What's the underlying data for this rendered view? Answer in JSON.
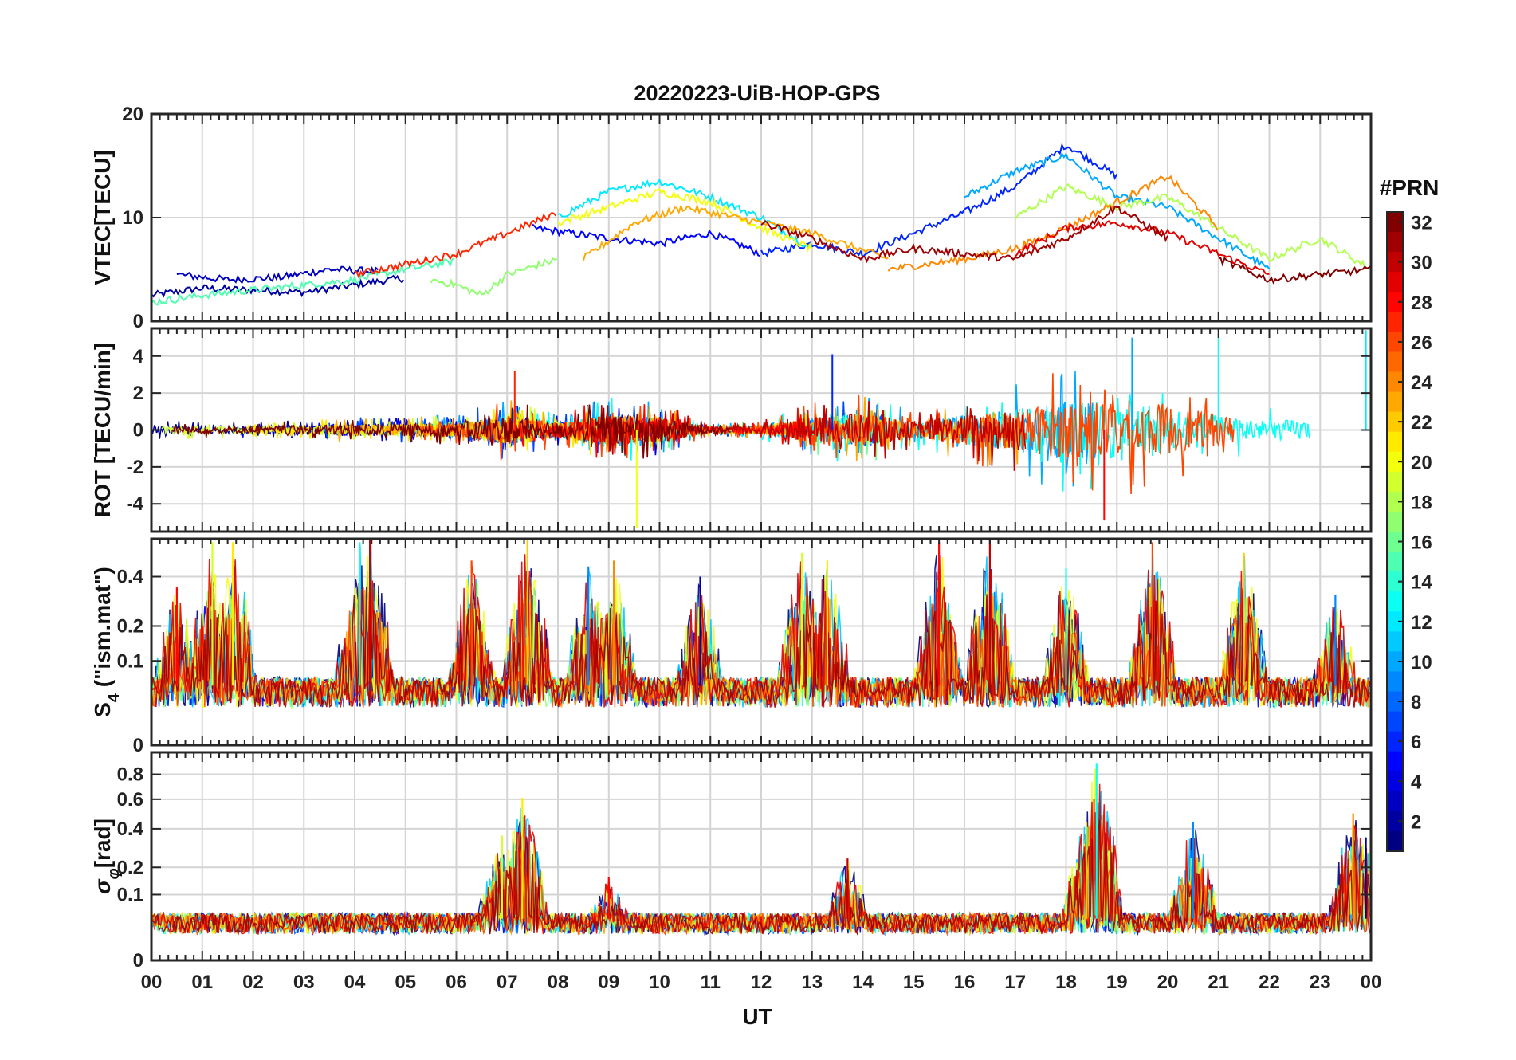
{
  "title": "20220223-UiB-HOP-GPS",
  "xlabel": "UT",
  "x_tick_labels": [
    "00",
    "01",
    "02",
    "03",
    "04",
    "05",
    "06",
    "07",
    "08",
    "09",
    "10",
    "11",
    "12",
    "13",
    "14",
    "15",
    "16",
    "17",
    "18",
    "19",
    "20",
    "21",
    "22",
    "23",
    "00"
  ],
  "colorbar": {
    "label": "#PRN",
    "tick_labels": [
      "2",
      "4",
      "6",
      "8",
      "10",
      "12",
      "14",
      "16",
      "18",
      "20",
      "22",
      "24",
      "26",
      "28",
      "30",
      "32"
    ],
    "range": [
      1,
      32
    ],
    "colormap": "jet"
  },
  "panels": [
    {
      "id": "vtec",
      "ylabel": "VTEC[TECU]",
      "ylim": [
        0,
        20
      ],
      "ytick_values": [
        0,
        10,
        20
      ],
      "ytick_labels": [
        "0",
        "10",
        "20"
      ]
    },
    {
      "id": "rot",
      "ylabel": "ROT [TECU/min]",
      "ylim": [
        -5.5,
        5.5
      ],
      "ytick_values": [
        -4,
        -2,
        0,
        2,
        4
      ],
      "ytick_labels": [
        "-4",
        "-2",
        "0",
        "2",
        "4"
      ]
    },
    {
      "id": "s4",
      "ylabel": "S",
      "ylabel_sub": "4",
      "ylabel_suffix": " (\"ism.mat\")",
      "ylim": [
        0,
        0.6
      ],
      "scale": "sqrt",
      "ytick_values": [
        0,
        0.1,
        0.2,
        0.4
      ],
      "ytick_labels": [
        "0",
        "0.1",
        "0.2",
        "0.4"
      ]
    },
    {
      "id": "sigma",
      "ylabel": "σ",
      "ylabel_sub": "φ",
      "ylabel_suffix": "[rad]",
      "ylim": [
        0,
        1
      ],
      "scale": "sqrt",
      "ytick_values": [
        0,
        0.1,
        0.2,
        0.4,
        0.6,
        0.8
      ],
      "ytick_labels": [
        "0",
        "0.1",
        "0.2",
        "0.4",
        "0.6",
        "0.8"
      ]
    }
  ],
  "chart_data": {
    "type": "line",
    "title": "20220223-UiB-HOP-GPS",
    "xlabel": "UT",
    "x_unit": "hours",
    "xlim": [
      0,
      24
    ],
    "grid": true,
    "color_by": "PRN",
    "prn_range": [
      1,
      32
    ],
    "panels": [
      {
        "id": "vtec",
        "ylabel": "VTEC[TECU]",
        "ylim": [
          0,
          20
        ],
        "series": [
          {
            "prn": 2,
            "x": [
              0.0,
              1.0,
              2.0,
              3.0,
              4.0,
              5.0
            ],
            "y": [
              2.5,
              3.2,
              3.0,
              2.8,
              3.5,
              4.2
            ]
          },
          {
            "prn": 3,
            "x": [
              0.5,
              1.5,
              2.5,
              3.5,
              4.5
            ],
            "y": [
              4.5,
              4.0,
              4.2,
              5.0,
              4.8
            ]
          },
          {
            "prn": 5,
            "x": [
              7.5,
              9.0,
              10.0,
              10.5,
              11.0,
              12.0
            ],
            "y": [
              9.0,
              8.0,
              7.5,
              8.0,
              8.5,
              6.5
            ]
          },
          {
            "prn": 6,
            "x": [
              12.0,
              13.0,
              14.0,
              15.0,
              16.0,
              17.0,
              18.0,
              19.0
            ],
            "y": [
              6.5,
              7.5,
              6.5,
              8.5,
              10.5,
              13.0,
              17.0,
              14.0
            ]
          },
          {
            "prn": 10,
            "x": [
              16.0,
              17.0,
              18.0,
              19.0,
              20.0,
              21.0,
              22.0
            ],
            "y": [
              12.0,
              14.5,
              16.0,
              12.0,
              11.0,
              8.0,
              5.0
            ]
          },
          {
            "prn": 12,
            "x": [
              8.0,
              9.0,
              10.0,
              11.0,
              12.0,
              13.0
            ],
            "y": [
              10.0,
              12.5,
              13.5,
              12.0,
              10.0,
              7.0
            ]
          },
          {
            "prn": 15,
            "x": [
              0.0,
              1.0,
              2.0,
              3.0,
              4.0,
              5.0,
              6.0
            ],
            "y": [
              1.8,
              2.5,
              3.0,
              3.5,
              4.0,
              5.0,
              5.8
            ]
          },
          {
            "prn": 17,
            "x": [
              5.5,
              6.0,
              6.5,
              7.0,
              8.0
            ],
            "y": [
              4.0,
              3.5,
              2.5,
              4.5,
              6.0
            ]
          },
          {
            "prn": 18,
            "x": [
              17.0,
              18.0,
              19.0,
              20.0,
              21.0,
              22.0,
              23.0,
              24.0
            ],
            "y": [
              10.0,
              13.0,
              11.0,
              12.0,
              9.0,
              6.0,
              8.0,
              5.0
            ]
          },
          {
            "prn": 20,
            "x": [
              8.0,
              9.0,
              10.0,
              11.0,
              12.0,
              13.0
            ],
            "y": [
              9.5,
              11.0,
              12.5,
              11.5,
              9.0,
              7.0
            ]
          },
          {
            "prn": 23,
            "x": [
              8.5,
              9.5,
              10.5,
              11.5,
              13.0,
              14.5
            ],
            "y": [
              6.0,
              9.5,
              11.0,
              10.0,
              8.5,
              6.0
            ]
          },
          {
            "prn": 24,
            "x": [
              14.5,
              16.0,
              17.0,
              18.0,
              19.0,
              20.0,
              21.0
            ],
            "y": [
              5.0,
              6.0,
              7.0,
              9.0,
              11.5,
              14.0,
              9.0
            ]
          },
          {
            "prn": 27,
            "x": [
              4.0,
              5.0,
              6.0,
              7.0,
              8.0
            ],
            "y": [
              4.5,
              5.5,
              6.5,
              8.5,
              10.5
            ]
          },
          {
            "prn": 29,
            "x": [
              17.0,
              18.0,
              19.0,
              20.0,
              21.0,
              22.0
            ],
            "y": [
              6.5,
              9.0,
              9.5,
              8.5,
              6.5,
              4.5
            ]
          },
          {
            "prn": 31,
            "x": [
              12.0,
              13.0,
              14.0,
              15.0,
              16.0,
              17.0,
              18.0,
              19.0,
              20.0
            ],
            "y": [
              9.5,
              8.0,
              6.0,
              7.0,
              6.5,
              6.0,
              8.0,
              11.0,
              8.0
            ]
          },
          {
            "prn": 32,
            "x": [
              21.0,
              22.0,
              23.0,
              24.0
            ],
            "y": [
              6.0,
              4.0,
              4.5,
              5.0
            ]
          }
        ]
      },
      {
        "id": "rot",
        "ylabel": "ROT [TECU/min]",
        "ylim": [
          -5.5,
          5.5
        ],
        "envelope": [
          {
            "x": [
              0,
              2,
              4,
              6,
              7,
              8,
              9,
              10,
              11,
              12,
              13,
              14,
              15,
              16,
              17,
              18,
              19,
              20,
              21,
              22,
              23,
              24
            ],
            "amplitude": [
              0.5,
              0.4,
              0.7,
              0.8,
              1.8,
              0.9,
              1.8,
              1.5,
              0.3,
              0.5,
              1.5,
              2.0,
              1.0,
              1.8,
              2.5,
              3.5,
              3.8,
              3.0,
              1.8,
              1.2,
              1.2,
              2.0
            ]
          }
        ],
        "peaks": [
          {
            "x": 9.55,
            "y": -5.3
          },
          {
            "x": 18.75,
            "y": -4.9
          },
          {
            "x": 19.3,
            "y": 5.0
          },
          {
            "x": 13.4,
            "y": 4.1
          },
          {
            "x": 7.15,
            "y": 3.2
          },
          {
            "x": 21.0,
            "y": 5.2
          },
          {
            "x": 23.9,
            "y": 5.4
          }
        ]
      },
      {
        "id": "s4",
        "ylabel": "S4 (\"ism.mat\")",
        "ylim": [
          0,
          0.6
        ],
        "baseline": 0.05,
        "peaks": [
          {
            "x": 1.2,
            "y": 0.58
          },
          {
            "x": 1.6,
            "y": 0.58
          },
          {
            "x": 0.5,
            "y": 0.35
          },
          {
            "x": 4.3,
            "y": 0.6
          },
          {
            "x": 4.1,
            "y": 0.58
          },
          {
            "x": 6.3,
            "y": 0.48
          },
          {
            "x": 7.4,
            "y": 0.6
          },
          {
            "x": 8.6,
            "y": 0.45
          },
          {
            "x": 9.1,
            "y": 0.48
          },
          {
            "x": 10.8,
            "y": 0.4
          },
          {
            "x": 12.8,
            "y": 0.52
          },
          {
            "x": 13.3,
            "y": 0.48
          },
          {
            "x": 15.5,
            "y": 0.58
          },
          {
            "x": 16.5,
            "y": 0.6
          },
          {
            "x": 18.0,
            "y": 0.44
          },
          {
            "x": 19.7,
            "y": 0.58
          },
          {
            "x": 21.5,
            "y": 0.52
          },
          {
            "x": 23.3,
            "y": 0.32
          }
        ]
      },
      {
        "id": "sigma",
        "ylabel": "σφ[rad]",
        "ylim": [
          0,
          1
        ],
        "baseline": 0.04,
        "peaks": [
          {
            "x": 6.9,
            "y": 0.36
          },
          {
            "x": 7.3,
            "y": 0.61
          },
          {
            "x": 9.0,
            "y": 0.16
          },
          {
            "x": 13.7,
            "y": 0.24
          },
          {
            "x": 18.6,
            "y": 0.9
          },
          {
            "x": 18.55,
            "y": 0.6
          },
          {
            "x": 18.4,
            "y": 0.44
          },
          {
            "x": 20.5,
            "y": 0.44
          },
          {
            "x": 23.65,
            "y": 0.5
          },
          {
            "x": 23.9,
            "y": 0.35
          }
        ]
      }
    ]
  }
}
